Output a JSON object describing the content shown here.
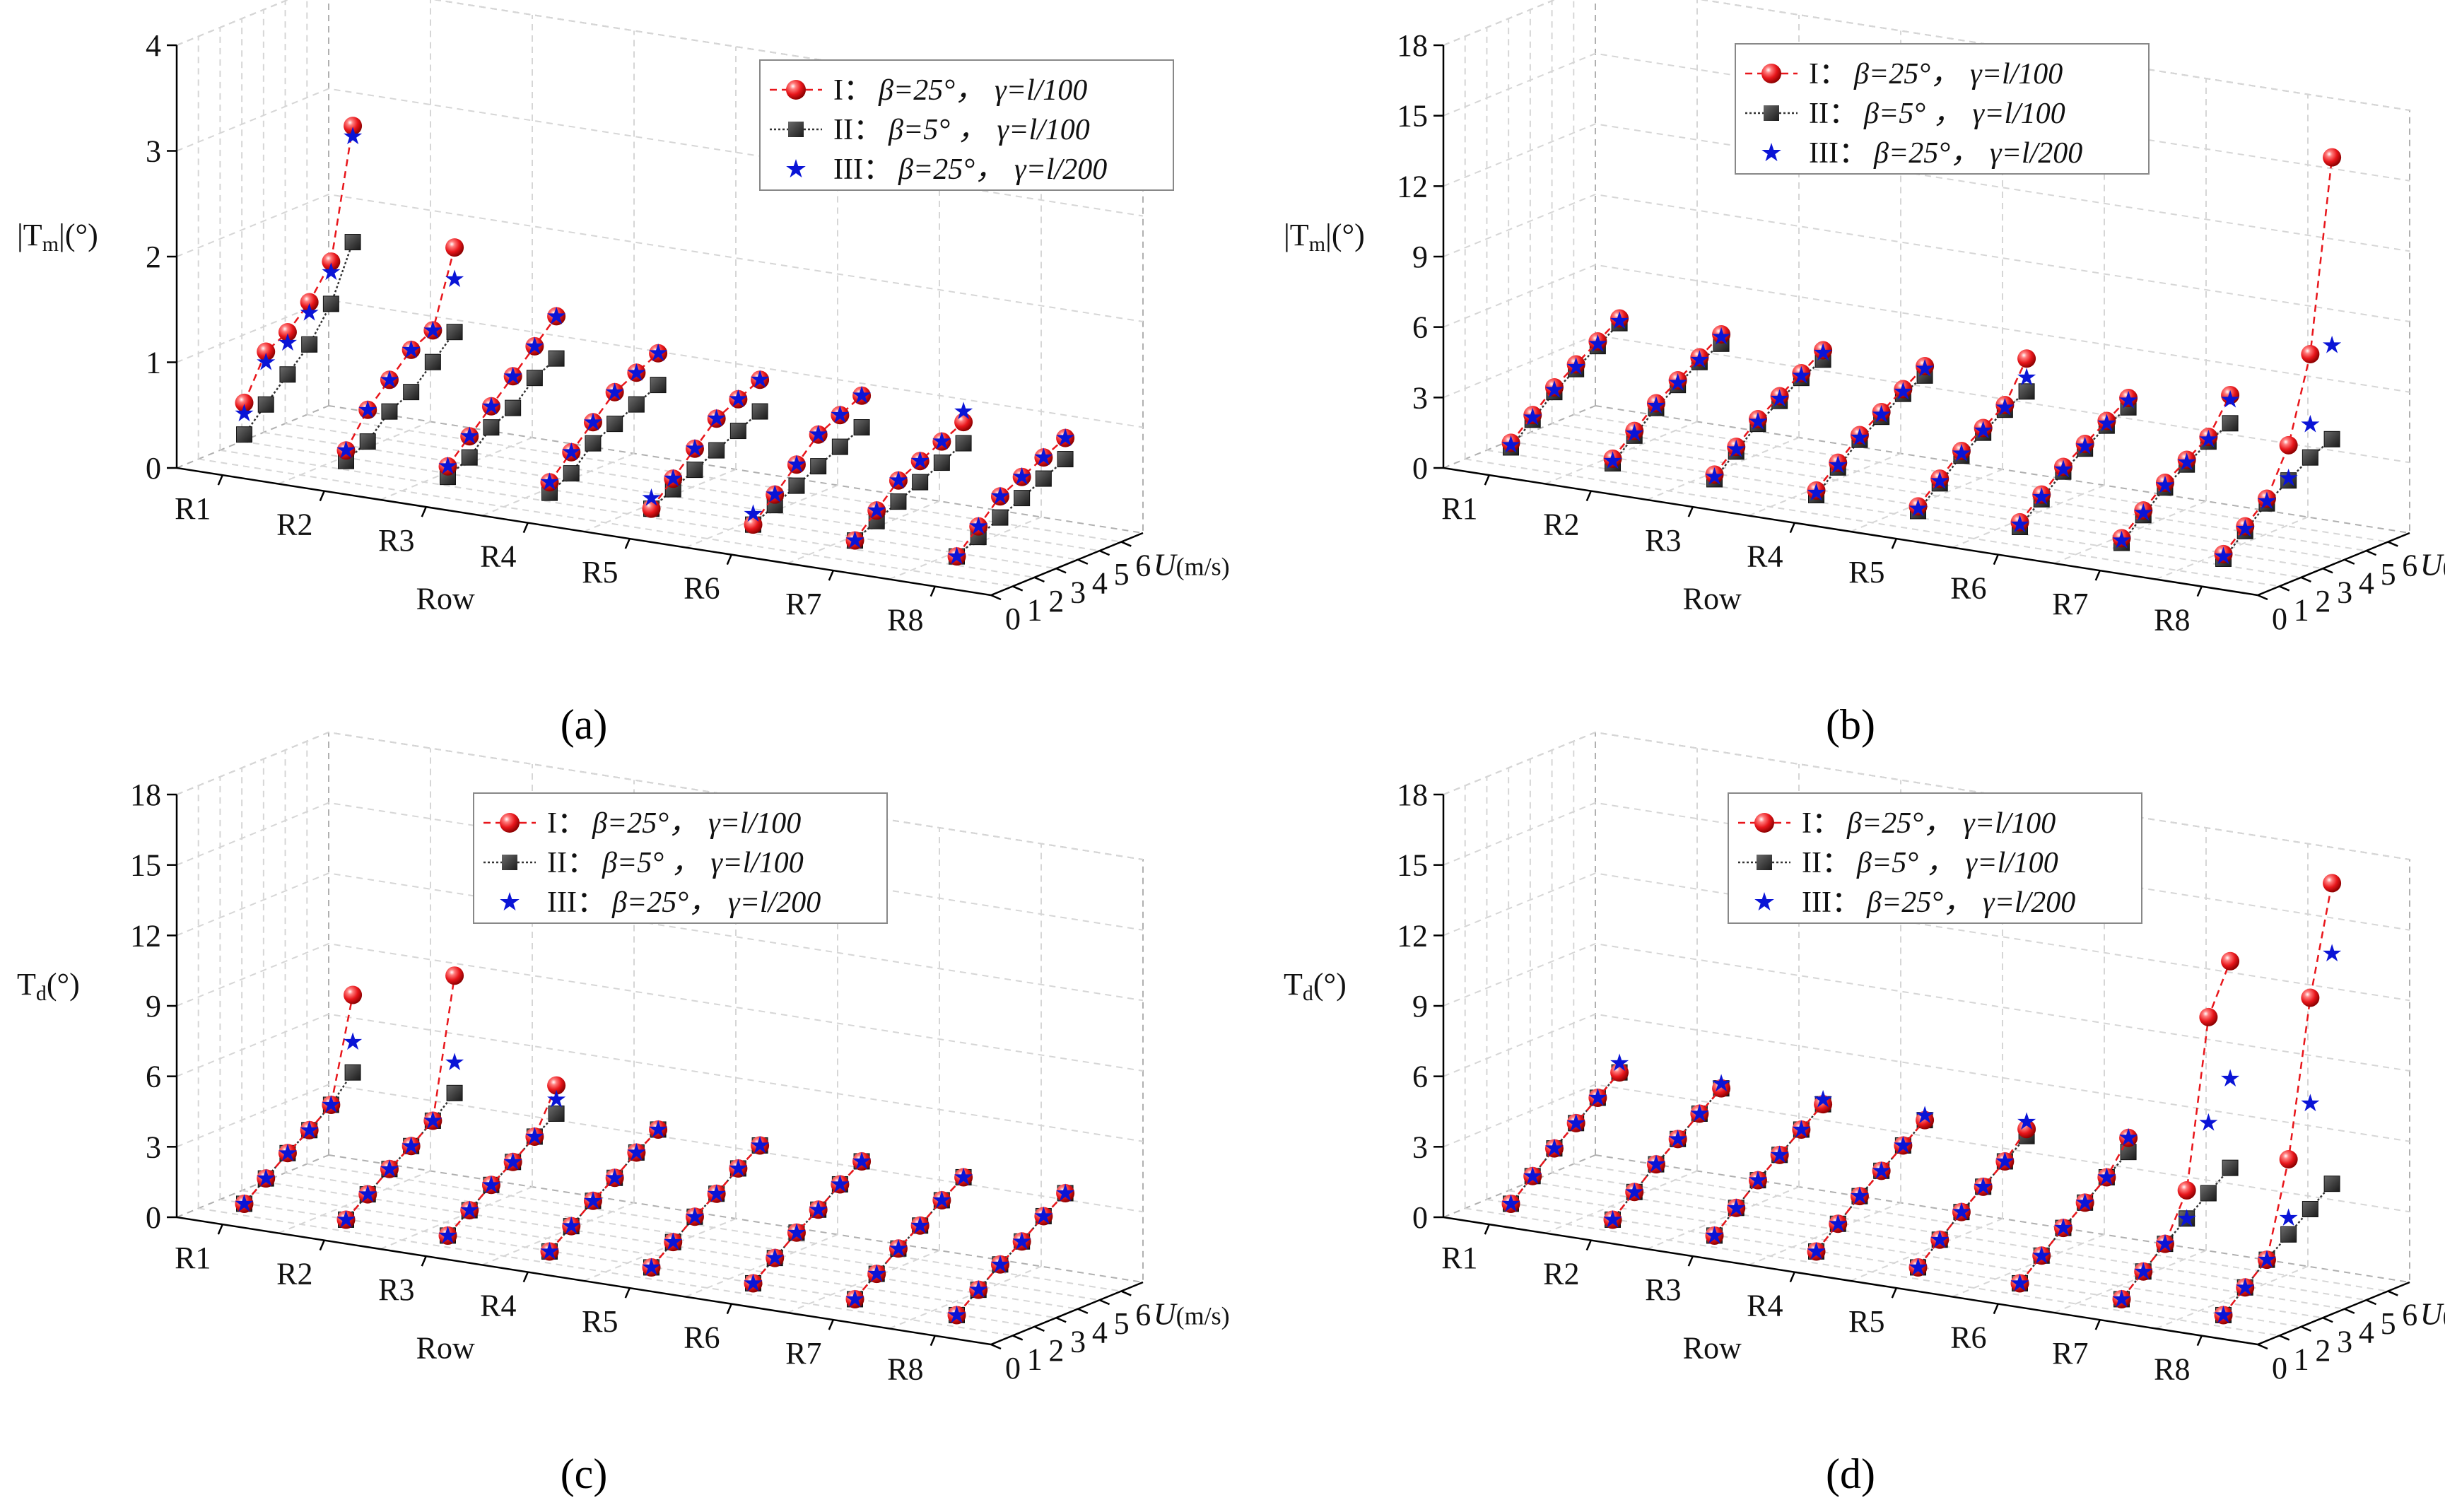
{
  "figure": {
    "panel_labels": [
      "(a)",
      "(b)",
      "(c)",
      "(d)"
    ]
  },
  "legend": [
    {
      "num": "I：",
      "beta": "β=25°，",
      "gamma": "γ=l/100"
    },
    {
      "num": "II：",
      "beta": "β=5° ，",
      "gamma": "γ=l/100"
    },
    {
      "num": "III：",
      "beta": "β=25°，",
      "gamma": "γ=l/200"
    }
  ],
  "colors": {
    "series1": "#e8161b",
    "series2": "#333333",
    "series3": "#0a14d6"
  },
  "chart_data": [
    {
      "type": "scatter3d",
      "panel": "(a)",
      "ylabel": "|Tm|(°)",
      "ylabel_main": "|T",
      "ylabel_sub": "m",
      "ylabel_tail": "|(°)",
      "xlabel": "Row",
      "zlabel": "U(m/s)",
      "zlabel_main": "U",
      "zlabel_tail": "(m/s)",
      "rows": [
        "R1",
        "R2",
        "R3",
        "R4",
        "R5",
        "R6",
        "R7",
        "R8"
      ],
      "u_ticks": [
        "0",
        "1",
        "2",
        "3",
        "4",
        "5",
        "6"
      ],
      "y_ticks": [
        "0",
        "1",
        "2",
        "3",
        "4"
      ],
      "ylim": [
        0,
        4
      ],
      "u": [
        1,
        2,
        3,
        4,
        5,
        6
      ],
      "series": [
        {
          "name": "I",
          "values": [
            [
              0.6,
              1.0,
              1.1,
              1.3,
              1.6,
              2.8
            ],
            [
              0.3,
              0.6,
              0.8,
              1.0,
              1.1,
              1.8
            ],
            [
              0.3,
              0.5,
              0.7,
              0.9,
              1.1,
              1.3
            ],
            [
              0.3,
              0.5,
              0.7,
              0.9,
              1.0,
              1.1
            ],
            [
              0.2,
              0.4,
              0.6,
              0.8,
              0.9,
              1.0
            ],
            [
              0.2,
              0.4,
              0.6,
              0.8,
              0.9,
              1.0
            ],
            [
              0.2,
              0.4,
              0.6,
              0.7,
              0.8,
              0.9
            ],
            [
              0.2,
              0.4,
              0.6,
              0.7,
              0.8,
              0.9
            ]
          ]
        },
        {
          "name": "II",
          "values": [
            [
              0.3,
              0.5,
              0.7,
              0.9,
              1.2,
              1.7
            ],
            [
              0.2,
              0.3,
              0.5,
              0.6,
              0.8,
              1.0
            ],
            [
              0.2,
              0.3,
              0.5,
              0.6,
              0.8,
              0.9
            ],
            [
              0.2,
              0.3,
              0.5,
              0.6,
              0.7,
              0.8
            ],
            [
              0.2,
              0.3,
              0.4,
              0.5,
              0.6,
              0.7
            ],
            [
              0.2,
              0.3,
              0.4,
              0.5,
              0.6,
              0.7
            ],
            [
              0.2,
              0.3,
              0.4,
              0.5,
              0.6,
              0.7
            ],
            [
              0.2,
              0.3,
              0.4,
              0.5,
              0.6,
              0.7
            ]
          ]
        },
        {
          "name": "III",
          "values": [
            [
              0.5,
              0.9,
              1.0,
              1.2,
              1.5,
              2.7
            ],
            [
              0.3,
              0.6,
              0.8,
              1.0,
              1.1,
              1.5
            ],
            [
              0.3,
              0.5,
              0.7,
              0.9,
              1.1,
              1.3
            ],
            [
              0.3,
              0.5,
              0.7,
              0.9,
              1.0,
              1.1
            ],
            [
              0.3,
              0.4,
              0.6,
              0.8,
              0.9,
              1.0
            ],
            [
              0.3,
              0.4,
              0.6,
              0.8,
              0.9,
              1.0
            ],
            [
              0.2,
              0.4,
              0.6,
              0.7,
              0.8,
              1.0
            ],
            [
              0.2,
              0.4,
              0.6,
              0.7,
              0.8,
              0.9
            ]
          ]
        }
      ]
    },
    {
      "type": "scatter3d",
      "panel": "(b)",
      "ylabel": "|Tm|(°)",
      "ylabel_main": "|T",
      "ylabel_sub": "m",
      "ylabel_tail": "|(°)",
      "xlabel": "Row",
      "zlabel": "U(m/s)",
      "zlabel_main": "U",
      "zlabel_tail": "(m/s)",
      "rows": [
        "R1",
        "R2",
        "R3",
        "R4",
        "R5",
        "R6",
        "R7",
        "R8"
      ],
      "u_ticks": [
        "0",
        "1",
        "2",
        "3",
        "4",
        "5",
        "6"
      ],
      "y_ticks": [
        "0",
        "3",
        "6",
        "9",
        "12",
        "15",
        "18"
      ],
      "ylim": [
        0,
        18
      ],
      "u": [
        1,
        2,
        3,
        4,
        5,
        6
      ],
      "series": [
        {
          "name": "I",
          "values": [
            [
              1.0,
              1.8,
              2.6,
              3.2,
              3.8,
              4.4
            ],
            [
              1.0,
              1.8,
              2.6,
              3.2,
              3.8,
              4.4
            ],
            [
              1.0,
              1.8,
              2.6,
              3.2,
              3.8,
              4.4
            ],
            [
              1.0,
              1.8,
              2.6,
              3.2,
              3.8,
              4.4
            ],
            [
              1.0,
              1.8,
              2.6,
              3.2,
              3.8,
              5.4
            ],
            [
              1.0,
              1.8,
              2.6,
              3.2,
              3.8,
              4.4
            ],
            [
              1.0,
              1.8,
              2.6,
              3.2,
              3.8,
              5.2
            ],
            [
              1.0,
              1.8,
              2.6,
              4.5,
              8.0,
              16.0
            ]
          ]
        },
        {
          "name": "II",
          "values": [
            [
              0.8,
              1.6,
              2.4,
              3.0,
              3.6,
              4.2
            ],
            [
              0.8,
              1.6,
              2.4,
              3.0,
              3.6,
              4.0
            ],
            [
              0.8,
              1.6,
              2.4,
              3.0,
              3.6,
              4.0
            ],
            [
              0.8,
              1.6,
              2.4,
              3.0,
              3.6,
              4.0
            ],
            [
              0.8,
              1.6,
              2.4,
              3.0,
              3.6,
              4.0
            ],
            [
              0.8,
              1.6,
              2.4,
              3.0,
              3.6,
              4.0
            ],
            [
              0.8,
              1.6,
              2.4,
              3.0,
              3.6,
              4.0
            ],
            [
              0.8,
              1.6,
              2.4,
              3.0,
              3.6,
              4.0
            ]
          ]
        },
        {
          "name": "III",
          "values": [
            [
              0.9,
              1.7,
              2.5,
              3.1,
              3.7,
              4.3
            ],
            [
              0.9,
              1.7,
              2.5,
              3.1,
              3.7,
              4.3
            ],
            [
              0.9,
              1.7,
              2.5,
              3.1,
              3.7,
              4.3
            ],
            [
              0.9,
              1.7,
              2.5,
              3.1,
              3.7,
              4.3
            ],
            [
              0.9,
              1.7,
              2.5,
              3.1,
              3.7,
              4.6
            ],
            [
              0.9,
              1.7,
              2.5,
              3.1,
              3.7,
              4.3
            ],
            [
              0.9,
              1.7,
              2.5,
              3.1,
              3.7,
              5.0
            ],
            [
              0.9,
              1.7,
              2.5,
              3.1,
              5.0,
              8.0
            ]
          ]
        }
      ]
    },
    {
      "type": "scatter3d",
      "panel": "(c)",
      "ylabel": "Td(°)",
      "ylabel_main": "T",
      "ylabel_sub": "d",
      "ylabel_tail": "(°)",
      "xlabel": "Row",
      "zlabel": "U(m/s)",
      "zlabel_main": "U",
      "zlabel_tail": "(m/s)",
      "rows": [
        "R1",
        "R2",
        "R3",
        "R4",
        "R5",
        "R6",
        "R7",
        "R8"
      ],
      "u_ticks": [
        "0",
        "1",
        "2",
        "3",
        "4",
        "5",
        "6"
      ],
      "y_ticks": [
        "0",
        "3",
        "6",
        "9",
        "12",
        "15",
        "18"
      ],
      "ylim": [
        0,
        18
      ],
      "u": [
        1,
        2,
        3,
        4,
        5,
        6
      ],
      "series": [
        {
          "name": "I",
          "values": [
            [
              0.5,
              1.2,
              1.9,
              2.5,
              3.2,
              7.5
            ],
            [
              0.5,
              1.2,
              1.9,
              2.5,
              3.2,
              9.0
            ],
            [
              0.5,
              1.2,
              1.9,
              2.5,
              3.2,
              5.0
            ],
            [
              0.5,
              1.2,
              1.9,
              2.5,
              3.2,
              3.8
            ],
            [
              0.5,
              1.2,
              1.9,
              2.5,
              3.2,
              3.8
            ],
            [
              0.5,
              1.2,
              1.9,
              2.5,
              3.2,
              3.8
            ],
            [
              0.5,
              1.2,
              1.9,
              2.5,
              3.2,
              3.8
            ],
            [
              0.5,
              1.2,
              1.9,
              2.5,
              3.2,
              3.8
            ]
          ]
        },
        {
          "name": "II",
          "values": [
            [
              0.5,
              1.2,
              1.9,
              2.5,
              3.2,
              4.2
            ],
            [
              0.5,
              1.2,
              1.9,
              2.5,
              3.2,
              4.0
            ],
            [
              0.5,
              1.2,
              1.9,
              2.5,
              3.2,
              3.8
            ],
            [
              0.5,
              1.2,
              1.9,
              2.5,
              3.2,
              3.8
            ],
            [
              0.5,
              1.2,
              1.9,
              2.5,
              3.2,
              3.8
            ],
            [
              0.5,
              1.2,
              1.9,
              2.5,
              3.2,
              3.8
            ],
            [
              0.5,
              1.2,
              1.9,
              2.5,
              3.2,
              3.8
            ],
            [
              0.5,
              1.2,
              1.9,
              2.5,
              3.2,
              3.8
            ]
          ]
        },
        {
          "name": "III",
          "values": [
            [
              0.5,
              1.2,
              1.9,
              2.5,
              3.2,
              5.5
            ],
            [
              0.5,
              1.2,
              1.9,
              2.5,
              3.2,
              5.3
            ],
            [
              0.5,
              1.2,
              1.9,
              2.5,
              3.2,
              4.4
            ],
            [
              0.5,
              1.2,
              1.9,
              2.5,
              3.2,
              3.8
            ],
            [
              0.5,
              1.2,
              1.9,
              2.5,
              3.2,
              3.8
            ],
            [
              0.5,
              1.2,
              1.9,
              2.5,
              3.2,
              3.8
            ],
            [
              0.5,
              1.2,
              1.9,
              2.5,
              3.2,
              3.8
            ],
            [
              0.5,
              1.2,
              1.9,
              2.5,
              3.2,
              3.8
            ]
          ]
        }
      ]
    },
    {
      "type": "scatter3d",
      "panel": "(d)",
      "ylabel": "Td(°)",
      "ylabel_main": "T",
      "ylabel_sub": "d",
      "ylabel_tail": "(°)",
      "xlabel": "Row",
      "zlabel": "U(m/s)",
      "zlabel_main": "U",
      "zlabel_tail": "(m/s)",
      "rows": [
        "R1",
        "R2",
        "R3",
        "R4",
        "R5",
        "R6",
        "R7",
        "R8"
      ],
      "u_ticks": [
        "0",
        "1",
        "2",
        "3",
        "4",
        "5",
        "6"
      ],
      "y_ticks": [
        "0",
        "3",
        "6",
        "9",
        "12",
        "15",
        "18"
      ],
      "ylim": [
        0,
        18
      ],
      "u": [
        1,
        2,
        3,
        4,
        5,
        6
      ],
      "series": [
        {
          "name": "I",
          "values": [
            [
              0.5,
              1.3,
              2.1,
              2.8,
              3.5,
              4.2
            ],
            [
              0.5,
              1.3,
              2.1,
              2.8,
              3.5,
              4.2
            ],
            [
              0.5,
              1.3,
              2.1,
              2.8,
              3.5,
              4.2
            ],
            [
              0.5,
              1.3,
              2.1,
              2.8,
              3.5,
              4.2
            ],
            [
              0.5,
              1.3,
              2.1,
              2.8,
              3.5,
              4.5
            ],
            [
              0.5,
              1.3,
              2.1,
              2.8,
              3.5,
              4.8
            ],
            [
              0.5,
              1.3,
              2.1,
              4.0,
              11.0,
              13.0
            ],
            [
              0.5,
              1.3,
              2.1,
              6.0,
              12.5,
              17.0
            ]
          ]
        },
        {
          "name": "II",
          "values": [
            [
              0.5,
              1.3,
              2.1,
              2.8,
              3.5,
              4.2
            ],
            [
              0.5,
              1.3,
              2.1,
              2.8,
              3.5,
              4.2
            ],
            [
              0.5,
              1.3,
              2.1,
              2.8,
              3.5,
              4.2
            ],
            [
              0.5,
              1.3,
              2.1,
              2.8,
              3.5,
              4.2
            ],
            [
              0.5,
              1.3,
              2.1,
              2.8,
              3.5,
              4.2
            ],
            [
              0.5,
              1.3,
              2.1,
              2.8,
              3.5,
              4.2
            ],
            [
              0.5,
              1.3,
              2.1,
              2.8,
              3.5,
              4.2
            ],
            [
              0.5,
              1.3,
              2.1,
              2.8,
              3.5,
              4.2
            ]
          ]
        },
        {
          "name": "III",
          "values": [
            [
              0.5,
              1.3,
              2.1,
              2.8,
              3.5,
              4.6
            ],
            [
              0.5,
              1.3,
              2.1,
              2.8,
              3.5,
              4.4
            ],
            [
              0.5,
              1.3,
              2.1,
              2.8,
              3.5,
              4.4
            ],
            [
              0.5,
              1.3,
              2.1,
              2.8,
              3.5,
              4.4
            ],
            [
              0.5,
              1.3,
              2.1,
              2.8,
              3.5,
              4.8
            ],
            [
              0.5,
              1.3,
              2.1,
              2.8,
              3.5,
              4.8
            ],
            [
              0.5,
              1.3,
              2.1,
              2.8,
              6.5,
              8.0
            ],
            [
              0.5,
              1.3,
              2.1,
              3.5,
              8.0,
              14.0
            ]
          ]
        }
      ]
    }
  ]
}
